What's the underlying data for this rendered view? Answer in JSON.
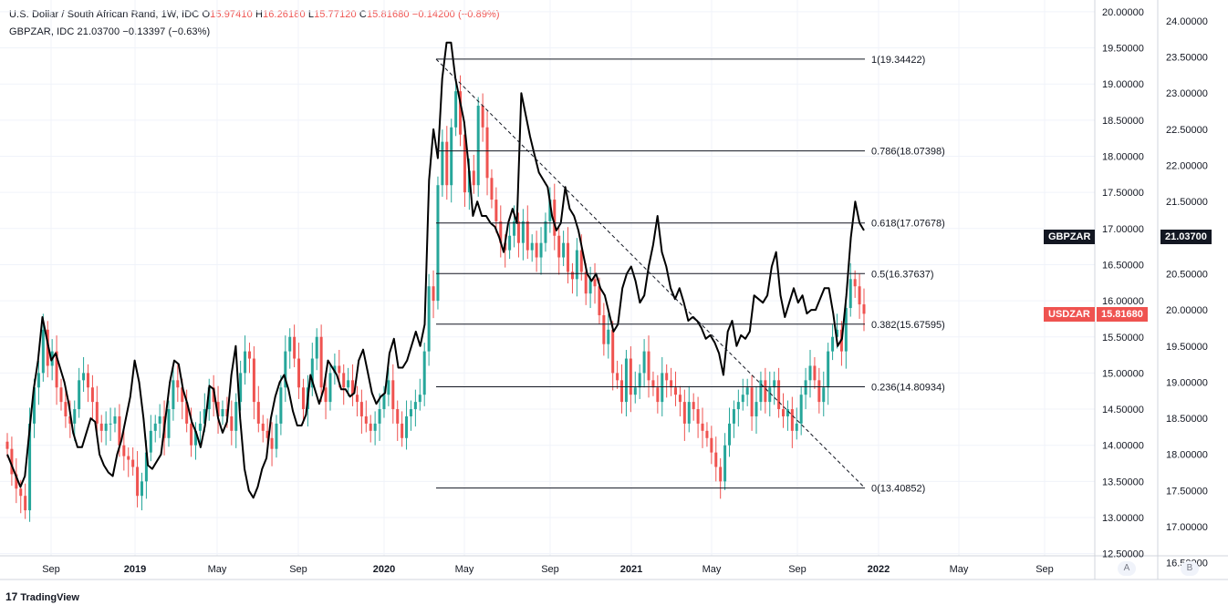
{
  "legend": {
    "main_title": "U.S. Dollar / South African Rand, 1W, IDC",
    "o_label": "O",
    "o_value": "15.97410",
    "h_label": "H",
    "h_value": "16.26180",
    "l_label": "L",
    "l_value": "15.77120",
    "c_label": "C",
    "c_value": "15.81680",
    "change": "−0.14200 (−0.89%)",
    "compare_title": "GBPZAR, IDC",
    "compare_value": "21.03700",
    "compare_change": "−0.13397 (−0.63%)"
  },
  "tags": {
    "gbpzar_symbol": "GBPZAR",
    "gbpzar_value": "21.03700",
    "usdzar_symbol": "USDZAR",
    "usdzar_value": "15.81680"
  },
  "scale_buttons": {
    "a": "A",
    "b": "B"
  },
  "brand": {
    "mark": "17",
    "name": "TradingView"
  },
  "colors": {
    "up": "#26a69a",
    "down": "#ef5350",
    "compare_line": "#000000",
    "grid": "#f0f3fa",
    "fib": "#131722",
    "tag_dark": "#131722",
    "tag_red": "#ef5350"
  },
  "chart_data": {
    "type": "candlestick",
    "x_axis_labels": [
      "Sep",
      "2019",
      "May",
      "Sep",
      "2020",
      "May",
      "Sep",
      "2021",
      "May",
      "Sep",
      "2022",
      "May",
      "Sep"
    ],
    "bold_x_labels": [
      "2019",
      "2020",
      "2021",
      "2022"
    ],
    "left_axis": {
      "ticks": [
        "20.00000",
        "19.50000",
        "19.00000",
        "18.50000",
        "18.00000",
        "17.50000",
        "17.00000",
        "16.50000",
        "16.00000",
        "15.50000",
        "15.00000",
        "14.50000",
        "14.00000",
        "13.50000",
        "13.00000",
        "12.50000"
      ],
      "ylim": [
        12.5,
        20.0
      ]
    },
    "right_axis": {
      "ticks": [
        "24.00000",
        "23.50000",
        "23.00000",
        "22.50000",
        "22.00000",
        "21.50000",
        "21.00000",
        "20.50000",
        "20.00000",
        "19.50000",
        "19.00000",
        "18.50000",
        "18.00000",
        "17.50000",
        "17.00000",
        "16.50000"
      ],
      "ylim": [
        16.5,
        24.0
      ]
    },
    "usdzar_close": [
      13.95,
      13.6,
      13.4,
      13.3,
      13.1,
      14.3,
      14.8,
      15.0,
      15.6,
      15.1,
      15.3,
      14.8,
      14.6,
      14.4,
      14.3,
      14.5,
      14.9,
      15.0,
      14.8,
      14.6,
      14.3,
      14.2,
      14.3,
      14.3,
      14.4,
      14.0,
      13.85,
      13.8,
      13.7,
      13.3,
      13.5,
      13.9,
      14.2,
      14.3,
      14.4,
      14.1,
      14.5,
      14.9,
      14.8,
      14.6,
      14.3,
      14.0,
      14.2,
      14.3,
      14.5,
      14.8,
      14.6,
      14.4,
      14.5,
      14.4,
      14.2,
      14.6,
      15.0,
      15.3,
      15.2,
      14.6,
      14.3,
      14.2,
      14.1,
      13.95,
      14.3,
      14.8,
      15.3,
      15.5,
      15.2,
      14.8,
      14.5,
      14.8,
      15.2,
      15.5,
      14.8,
      14.6,
      15.0,
      15.1,
      15.0,
      14.8,
      14.9,
      14.7,
      14.6,
      14.4,
      14.3,
      14.2,
      14.3,
      14.5,
      14.7,
      14.9,
      14.5,
      14.3,
      14.1,
      14.4,
      14.5,
      14.6,
      14.7,
      15.3,
      16.2,
      16.0,
      17.6,
      18.2,
      17.6,
      18.4,
      18.9,
      18.3,
      17.5,
      17.8,
      17.6,
      18.7,
      18.4,
      17.7,
      17.4,
      17.1,
      16.8,
      16.7,
      16.9,
      17.1,
      16.8,
      17.1,
      16.7,
      16.8,
      16.6,
      16.8,
      17.1,
      17.4,
      16.9,
      16.6,
      16.8,
      16.4,
      16.3,
      16.7,
      16.4,
      16.1,
      16.3,
      16.2,
      15.8,
      15.4,
      15.6,
      15.0,
      14.9,
      14.6,
      15.2,
      14.7,
      14.8,
      15.0,
      15.3,
      14.9,
      14.8,
      14.6,
      15.0,
      14.9,
      14.8,
      14.7,
      14.6,
      14.3,
      14.6,
      14.5,
      14.3,
      14.2,
      14.1,
      13.9,
      13.7,
      13.5,
      14.0,
      14.3,
      14.5,
      14.6,
      14.7,
      14.8,
      14.4,
      14.6,
      14.9,
      14.6,
      14.8,
      14.9,
      14.5,
      14.4,
      14.5,
      14.2,
      14.3,
      14.7,
      14.9,
      15.1,
      14.9,
      14.6,
      14.8,
      15.3,
      15.5,
      15.6,
      15.3,
      15.9,
      16.3,
      16.2,
      15.95,
      15.82
    ],
    "gbpzar_line": [
      18.0,
      17.85,
      17.7,
      17.55,
      17.7,
      18.3,
      18.9,
      19.3,
      19.9,
      19.6,
      19.3,
      19.4,
      19.2,
      19.0,
      18.7,
      18.3,
      18.1,
      18.1,
      18.3,
      18.5,
      18.45,
      18.0,
      17.85,
      17.75,
      17.7,
      18.0,
      18.2,
      18.5,
      18.8,
      19.3,
      19.0,
      18.5,
      17.85,
      17.8,
      17.9,
      18.0,
      18.5,
      19.0,
      19.3,
      19.25,
      18.9,
      18.7,
      18.45,
      18.3,
      18.1,
      18.4,
      18.95,
      18.9,
      18.5,
      18.3,
      18.45,
      19.1,
      19.5,
      18.5,
      17.8,
      17.5,
      17.4,
      17.55,
      17.8,
      17.95,
      18.5,
      18.8,
      19.0,
      19.1,
      18.9,
      18.6,
      18.4,
      18.4,
      18.55,
      19.1,
      18.9,
      18.7,
      18.9,
      19.3,
      19.2,
      19.1,
      18.9,
      18.9,
      18.8,
      18.85,
      19.3,
      19.45,
      19.15,
      18.85,
      18.7,
      18.8,
      18.85,
      19.4,
      19.6,
      19.2,
      19.2,
      19.3,
      19.5,
      19.7,
      19.5,
      19.8,
      21.8,
      22.5,
      22.1,
      23.2,
      23.7,
      23.7,
      23.2,
      22.9,
      22.6,
      22.0,
      21.3,
      21.5,
      21.3,
      21.3,
      21.2,
      21.15,
      21.0,
      20.8,
      21.2,
      21.4,
      21.2,
      23.0,
      22.7,
      22.4,
      22.15,
      21.9,
      21.8,
      21.7,
      21.3,
      21.1,
      21.2,
      21.7,
      21.4,
      21.3,
      21.1,
      20.8,
      20.5,
      20.4,
      20.5,
      20.3,
      20.2,
      19.95,
      19.7,
      19.8,
      20.3,
      20.5,
      20.6,
      20.4,
      20.1,
      20.2,
      20.6,
      20.9,
      21.3,
      20.8,
      20.6,
      20.3,
      20.15,
      20.3,
      20.1,
      19.85,
      19.9,
      19.85,
      19.75,
      19.6,
      19.65,
      19.55,
      19.4,
      19.1,
      19.7,
      19.85,
      19.5,
      19.65,
      19.6,
      19.7,
      20.2,
      20.15,
      20.1,
      20.2,
      20.6,
      20.8,
      20.2,
      19.9,
      20.1,
      20.3,
      20.1,
      20.2,
      19.95,
      20.0,
      20.0,
      20.15,
      20.3,
      20.3,
      19.95,
      19.5,
      19.6,
      20.2,
      21.0,
      21.5,
      21.2,
      21.1
    ],
    "fibonacci": [
      {
        "label": "1(19.34422)",
        "value": 19.34422
      },
      {
        "label": "0.786(18.07398)",
        "value": 18.07398
      },
      {
        "label": "0.618(17.07678)",
        "value": 17.07678
      },
      {
        "label": "0.5(16.37637)",
        "value": 16.37637
      },
      {
        "label": "0.382(15.67595)",
        "value": 15.67595
      },
      {
        "label": "0.236(14.80934)",
        "value": 14.80934
      },
      {
        "label": "0(13.40852)",
        "value": 13.40852
      }
    ],
    "trendline": {
      "from": 19.34422,
      "to": 13.40852
    }
  }
}
